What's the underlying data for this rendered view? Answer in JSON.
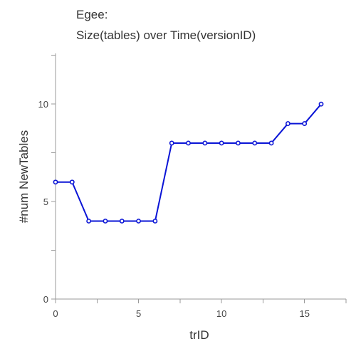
{
  "chart_data": {
    "type": "line",
    "title": "Egee:",
    "subtitle": "Size(tables) over Time(versionID)",
    "xlabel": "trID",
    "ylabel": "#num NewTables",
    "xlim": [
      0,
      17.5
    ],
    "ylim": [
      0,
      12.6
    ],
    "xticks": [
      0,
      5,
      10,
      15
    ],
    "yticks": [
      0,
      5,
      10
    ],
    "grid": false,
    "legend": "none",
    "series": [
      {
        "color": "#0a14d6",
        "x": [
          0,
          1,
          2,
          3,
          4,
          5,
          6,
          7,
          8,
          9,
          10,
          11,
          12,
          13,
          14,
          15,
          16
        ],
        "y": [
          6,
          6,
          4,
          4,
          4,
          4,
          4,
          8,
          8,
          8,
          8,
          8,
          8,
          8,
          9,
          9,
          10
        ]
      }
    ]
  }
}
